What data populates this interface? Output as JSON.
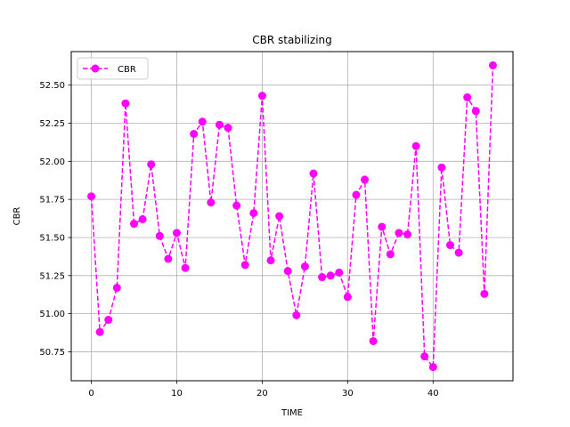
{
  "chart_data": {
    "type": "line",
    "title": "CBR stabilizing",
    "xlabel": "TIME",
    "ylabel": "CBR",
    "xlim": [
      -2.35,
      49.35
    ],
    "ylim": [
      50.56,
      52.72
    ],
    "x_ticks": [
      0,
      10,
      20,
      30,
      40
    ],
    "y_ticks": [
      50.75,
      51.0,
      51.25,
      51.5,
      51.75,
      52.0,
      52.25,
      52.5
    ],
    "x_tick_labels": [
      "0",
      "10",
      "20",
      "30",
      "40"
    ],
    "y_tick_labels": [
      "50.75",
      "51.00",
      "51.25",
      "51.50",
      "51.75",
      "52.00",
      "52.25",
      "52.50"
    ],
    "grid": true,
    "legend_position": "upper left",
    "series": [
      {
        "name": "CBR",
        "color": "#ff00ff",
        "line_style": "dashed",
        "marker": "circle",
        "x": [
          0,
          1,
          2,
          3,
          4,
          5,
          6,
          7,
          8,
          9,
          10,
          11,
          12,
          13,
          14,
          15,
          16,
          17,
          18,
          19,
          20,
          21,
          22,
          23,
          24,
          25,
          26,
          27,
          28,
          29,
          30,
          31,
          32,
          33,
          34,
          35,
          36,
          37,
          38,
          39,
          40,
          41,
          42,
          43,
          44,
          45,
          46,
          47
        ],
        "y": [
          51.77,
          50.88,
          50.96,
          51.17,
          52.38,
          51.59,
          51.62,
          51.98,
          51.51,
          51.36,
          51.53,
          51.3,
          52.18,
          52.26,
          51.73,
          52.24,
          52.22,
          51.71,
          51.32,
          51.66,
          52.43,
          51.35,
          51.64,
          51.28,
          50.99,
          51.31,
          51.92,
          51.24,
          51.25,
          51.27,
          51.11,
          51.78,
          51.88,
          50.82,
          51.57,
          51.39,
          51.53,
          51.52,
          52.1,
          50.72,
          50.65,
          51.96,
          51.45,
          51.4,
          52.42,
          52.33,
          51.13,
          52.63
        ]
      }
    ]
  }
}
